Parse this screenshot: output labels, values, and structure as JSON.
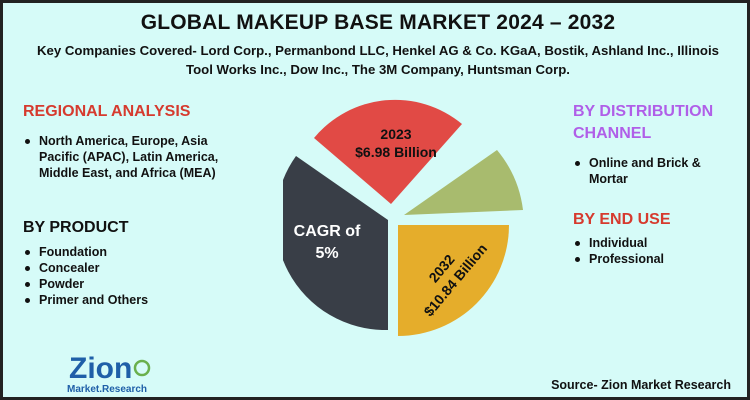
{
  "title": "GLOBAL MAKEUP BASE MARKET 2024 – 2032",
  "subtitle": "Key Companies Covered- Lord Corp., Permanbond LLC, Henkel AG & Co. KGaA, Bostik, Ashland Inc., Illinois Tool Works Inc., Dow Inc., The 3M Company, Huntsman Corp.",
  "regional": {
    "heading": "REGIONAL ANALYSIS",
    "items": [
      "North America, Europe, Asia Pacific (APAC), Latin America, Middle East, and Africa (MEA)"
    ]
  },
  "product": {
    "heading": "BY PRODUCT",
    "items": [
      "Foundation",
      "Concealer",
      "Powder",
      "Primer and Others"
    ]
  },
  "distribution": {
    "heading": "BY DISTRIBUTION CHANNEL",
    "items": [
      "Online and Brick & Mortar"
    ]
  },
  "end_use": {
    "heading": "BY END USE",
    "items": [
      "Individual",
      "Professional"
    ]
  },
  "source": "Source- Zion Market Research",
  "logo": {
    "top": "Zion",
    "bottom": "Market.Research"
  },
  "colors": {
    "background": "#d6fbf8",
    "red_slice": "#e14a45",
    "green_slice": "#a8bb6e",
    "gold_slice": "#e5ad2b",
    "dark_slice": "#393e47",
    "heading_red": "#d63a2e",
    "heading_violet": "#b05fe8"
  },
  "chart_data": {
    "type": "pie",
    "slices": [
      {
        "label_lines": [
          "2023",
          "$6.98 Billion"
        ],
        "color": "#e14a45"
      },
      {
        "label_lines": [],
        "color": "#a8bb6e"
      },
      {
        "label_lines": [
          "2032",
          "$10.84 Billion"
        ],
        "color": "#e5ad2b"
      },
      {
        "label_lines": [
          "CAGR of",
          "5%"
        ],
        "color": "#393e47"
      }
    ]
  }
}
